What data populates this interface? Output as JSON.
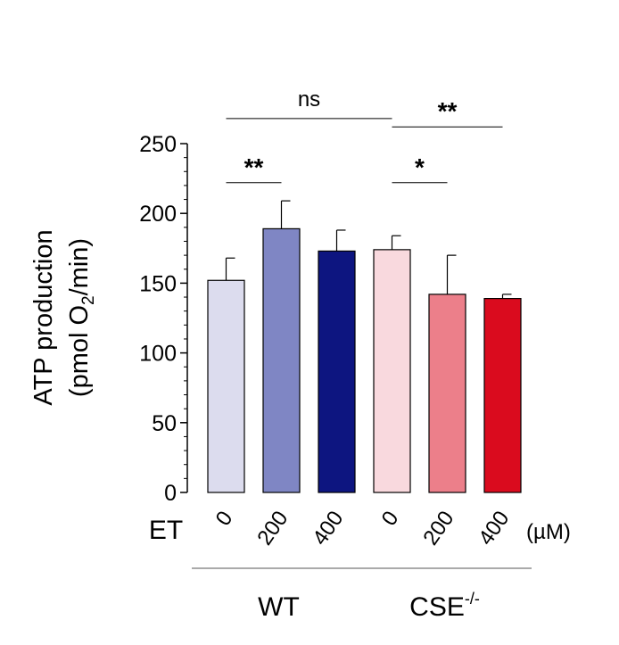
{
  "chart_data": {
    "type": "bar",
    "title": "",
    "ylabel_line1": "ATP production",
    "ylabel_line2_prefix": "(pmol O",
    "ylabel_line2_sub": "2",
    "ylabel_line2_suffix": "/min)",
    "ylim": [
      0,
      250
    ],
    "yticks": [
      "0",
      "50",
      "100",
      "150",
      "200",
      "250"
    ],
    "ytick_values": [
      0,
      50,
      100,
      150,
      200,
      250
    ],
    "treatment_label": "ET",
    "unit_label": "(µM)",
    "categories": [
      "0",
      "200",
      "400",
      "0",
      "200",
      "400"
    ],
    "values": [
      152,
      189,
      173,
      174,
      142,
      139
    ],
    "errors": [
      16,
      20,
      15,
      10,
      28,
      3
    ],
    "colors": [
      "#dcdcee",
      "#7f86c4",
      "#0d1580",
      "#f9d9de",
      "#ec7f8a",
      "#da0b1e"
    ],
    "groups": [
      {
        "label": "WT",
        "superscript": "",
        "start": 0,
        "end": 2
      },
      {
        "label": "CSE",
        "superscript": "-/-",
        "start": 3,
        "end": 5
      }
    ],
    "significance": [
      {
        "label": "ns",
        "from": 0,
        "to": 3,
        "y": 268
      },
      {
        "label": "**",
        "from": 0,
        "to": 1,
        "y": 222
      },
      {
        "label": "*",
        "from": 3,
        "to": 4,
        "y": 222
      },
      {
        "label": "**",
        "from": 3,
        "to": 5,
        "y": 262
      }
    ]
  }
}
